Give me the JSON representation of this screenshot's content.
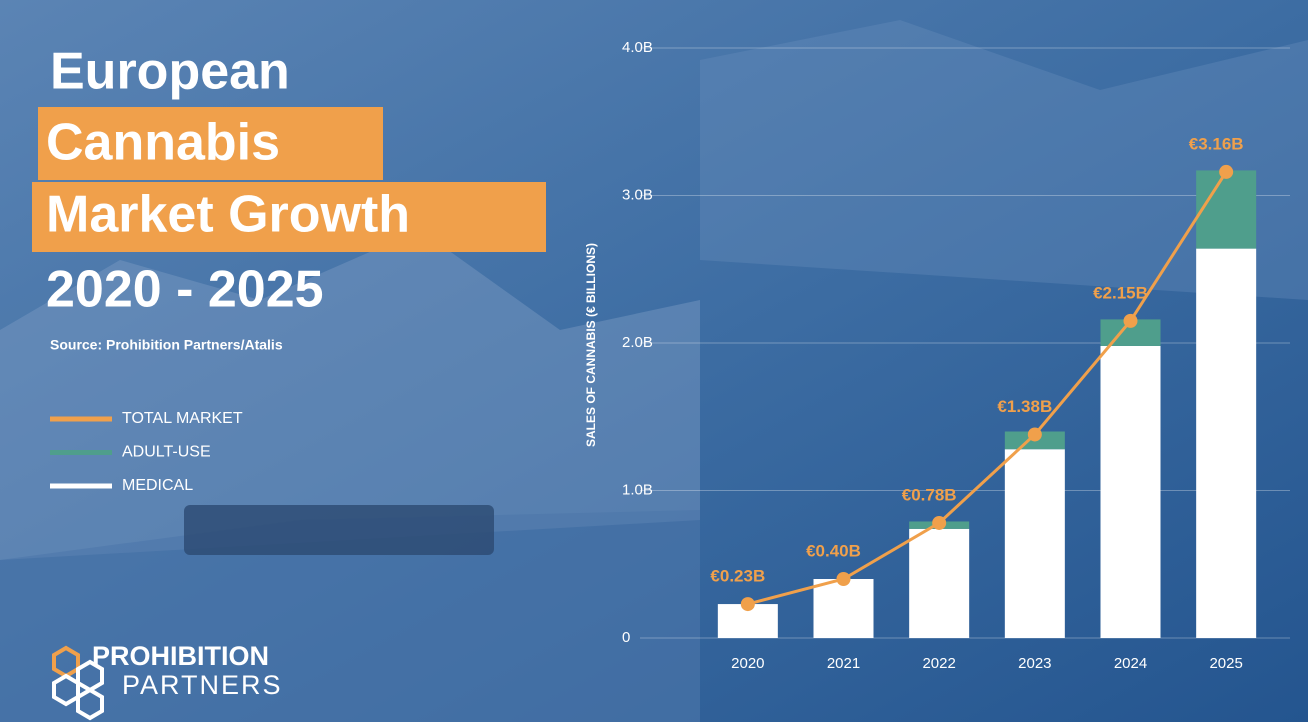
{
  "chart_data": {
    "type": "bar",
    "title": [
      "European",
      "Cannabis",
      "Market Growth",
      "2020 - 2025"
    ],
    "subtitle": "Source: Prohibition Partners/Atalis",
    "logo": [
      "PROHIBITION",
      "PARTNERS"
    ],
    "y_label": "SALES OF CANNABIS (€ BILLIONS)",
    "categories": [
      "2020",
      "2021",
      "2022",
      "2023",
      "2024",
      "2025"
    ],
    "series": [
      {
        "name": "TOTAL MARKET",
        "type": "line",
        "color": "#f0a04b",
        "values": [
          0.23,
          0.4,
          0.78,
          1.38,
          2.15,
          3.16
        ],
        "value_labels": [
          "€0.23B",
          "€0.40B",
          "€0.78B",
          "€1.38B",
          "€2.15B",
          "€3.16B"
        ]
      },
      {
        "name": "ADULT-USE",
        "type": "bar",
        "stack": 1,
        "color": "#4f9e8c",
        "values": [
          0,
          0,
          0.05,
          0.12,
          0.18,
          0.53
        ]
      },
      {
        "name": "MEDICAL",
        "type": "bar",
        "stack": 0,
        "color": "#ffffff",
        "values": [
          0.23,
          0.4,
          0.74,
          1.28,
          1.98,
          2.64
        ]
      }
    ],
    "ylim": [
      0,
      4
    ],
    "yticks": [
      0,
      {
        "value": 1,
        "label": "1.0B"
      },
      {
        "value": 2,
        "label": "2.0B"
      },
      {
        "value": 3,
        "label": "3.0B"
      },
      {
        "value": 4,
        "label": "4.0B"
      }
    ],
    "grid": true
  }
}
